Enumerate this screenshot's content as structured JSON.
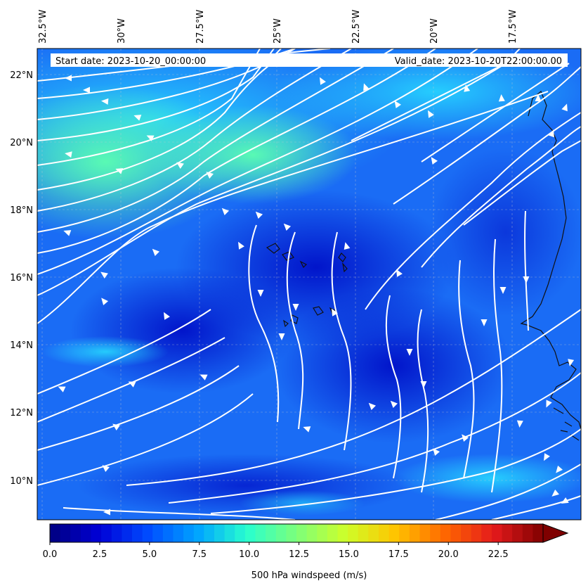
{
  "map": {
    "header": {
      "start_date": "Start date: 2023-10-20_00:00:00",
      "valid_date": "Valid_date: 2023-10-20T22:00:00.00"
    },
    "lon_labels": [
      "32.5°W",
      "30°W",
      "27.5°W",
      "25°W",
      "22.5°W",
      "20°W",
      "17.5°W"
    ],
    "lat_labels": [
      "22°N",
      "20°N",
      "18°N",
      "16°N",
      "14°N",
      "12°N",
      "10°N"
    ],
    "field_colors": {
      "low": "#0b1fd6",
      "mid": "#1f7dff",
      "cyan": "#27d6ff",
      "high": "#4cffb8",
      "coast": "#111111",
      "streamline": "#ffffff"
    },
    "colorbar": {
      "label": "500 hPa windspeed (m/s)",
      "min": 0,
      "max": 25,
      "extend": "max",
      "ticks": [
        "0.0",
        "2.5",
        "5.0",
        "7.5",
        "10.0",
        "12.5",
        "15.0",
        "17.5",
        "20.0",
        "22.5"
      ],
      "colors": [
        "#00007f",
        "#0000d6",
        "#004cff",
        "#00a4ff",
        "#29ffce",
        "#7dff7a",
        "#ceff29",
        "#ffc400",
        "#ff6800",
        "#e41a1c",
        "#7f0000"
      ]
    }
  }
}
